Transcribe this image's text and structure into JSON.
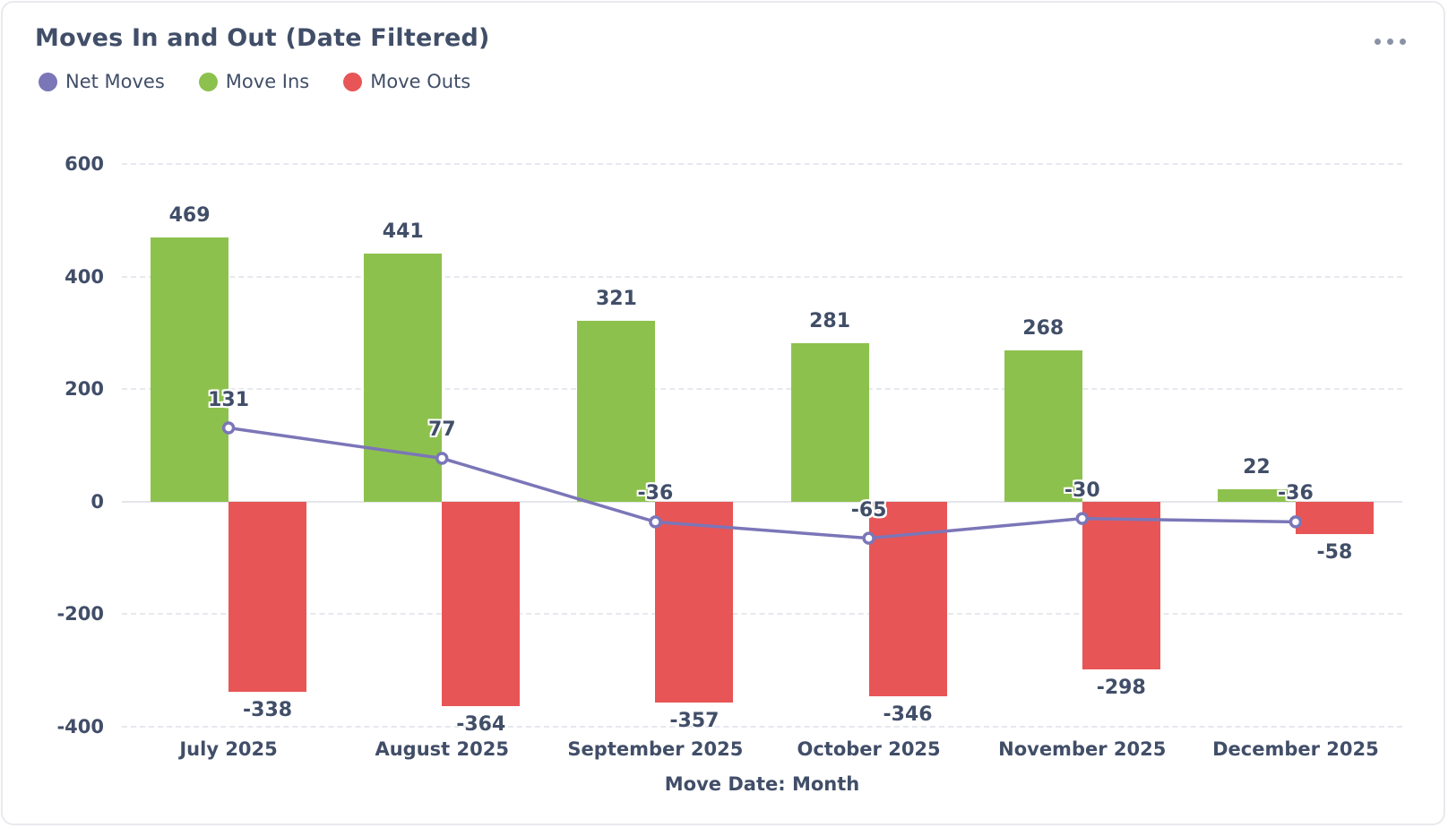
{
  "header": {
    "title": "Moves In and Out (Date Filtered)",
    "menu_icon": "ellipsis-menu"
  },
  "chart_data": {
    "type": "combo-bar-line",
    "title": "Moves In and Out (Date Filtered)",
    "xlabel": "Move Date: Month",
    "categories": [
      "July 2025",
      "August 2025",
      "September 2025",
      "October 2025",
      "November 2025",
      "December 2025"
    ],
    "series": [
      {
        "name": "Net Moves",
        "type": "line",
        "color": "#7b76b8",
        "values": [
          131,
          77,
          -36,
          -65,
          -30,
          -36
        ]
      },
      {
        "name": "Move Ins",
        "type": "bar",
        "color": "#8dc14d",
        "values": [
          469,
          441,
          321,
          281,
          268,
          22
        ]
      },
      {
        "name": "Move Outs",
        "type": "bar",
        "color": "#e85556",
        "values": [
          -338,
          -364,
          -357,
          -346,
          -298,
          -58
        ]
      }
    ],
    "ylim": [
      -400,
      600
    ],
    "yticks": [
      600,
      400,
      200,
      0,
      -200,
      -400
    ],
    "grid": "horizontal-dashed, zero-line-solid",
    "legend_position": "top-left",
    "colors": {
      "text": "#414e68",
      "grid_dashed": "#e7e8ee",
      "zero_line": "#e3e5ea",
      "card_border": "#e8eaee",
      "menu_dots": "#8a92a6",
      "marker_fill": "#ffffff"
    }
  }
}
